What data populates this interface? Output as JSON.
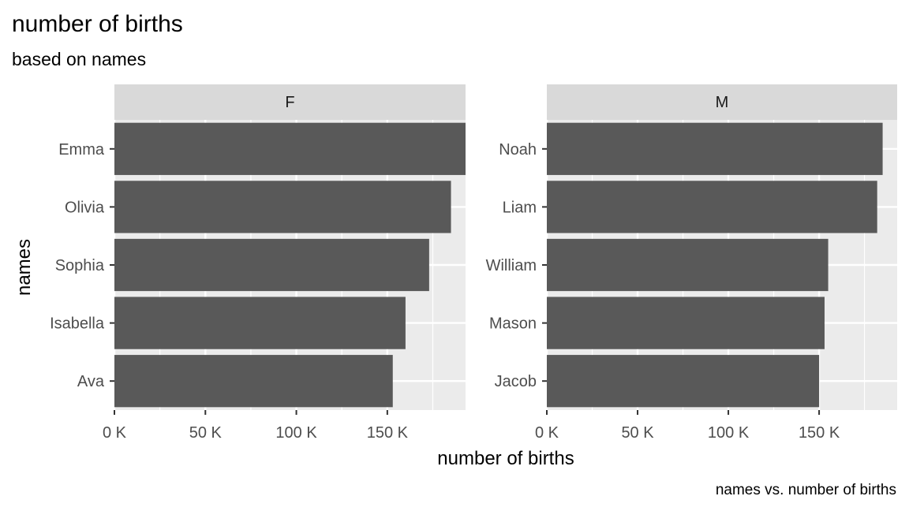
{
  "chart_data": {
    "type": "bar",
    "orientation": "horizontal",
    "title": "number of births",
    "subtitle": "based on names",
    "xlabel": "number of births",
    "ylabel": "names",
    "caption": "names vs. number of births",
    "xlim": [
      0,
      193000
    ],
    "x_ticks": [
      0,
      50000,
      100000,
      150000
    ],
    "x_tick_labels": [
      "0 K",
      "50 K",
      "100 K",
      "150 K"
    ],
    "grid": true,
    "legend": "none",
    "colors": {
      "bar": "#595959",
      "panel_bg": "#ebebeb",
      "strip_bg": "#d9d9d9",
      "grid": "#ffffff"
    },
    "facets": [
      {
        "label": "F",
        "categories": [
          "Emma",
          "Olivia",
          "Sophia",
          "Isabella",
          "Ava"
        ],
        "values": [
          194000,
          185000,
          173000,
          160000,
          153000
        ]
      },
      {
        "label": "M",
        "categories": [
          "Noah",
          "Liam",
          "William",
          "Mason",
          "Jacob"
        ],
        "values": [
          185000,
          182000,
          155000,
          153000,
          150000
        ]
      }
    ]
  }
}
